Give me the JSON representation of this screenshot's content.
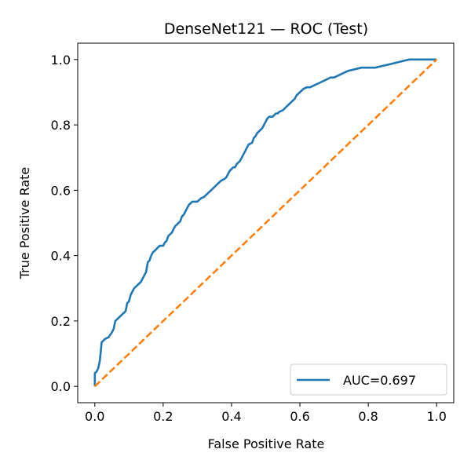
{
  "chart_data": {
    "type": "line",
    "title": "DenseNet121 — ROC (Test)",
    "xlabel": "False Positive Rate",
    "ylabel": "True Positive Rate",
    "xlim": [
      -0.05,
      1.05
    ],
    "ylim": [
      -0.05,
      1.05
    ],
    "x_ticks": [
      "0.0",
      "0.2",
      "0.4",
      "0.6",
      "0.8",
      "1.0"
    ],
    "y_ticks": [
      "0.0",
      "0.2",
      "0.4",
      "0.6",
      "0.8",
      "1.0"
    ],
    "legend_position": "lower-right",
    "grid": false,
    "series": [
      {
        "name": "AUC=0.697",
        "color": "#1f77b4",
        "style": "solid",
        "x": [
          0.0,
          0.0,
          0.005,
          0.01,
          0.012,
          0.015,
          0.02,
          0.025,
          0.03,
          0.04,
          0.05,
          0.055,
          0.06,
          0.065,
          0.07,
          0.075,
          0.08,
          0.09,
          0.095,
          0.1,
          0.105,
          0.11,
          0.115,
          0.12,
          0.125,
          0.13,
          0.135,
          0.14,
          0.145,
          0.15,
          0.155,
          0.16,
          0.165,
          0.17,
          0.175,
          0.18,
          0.185,
          0.19,
          0.2,
          0.205,
          0.21,
          0.215,
          0.22,
          0.225,
          0.23,
          0.235,
          0.24,
          0.245,
          0.25,
          0.255,
          0.26,
          0.265,
          0.27,
          0.275,
          0.28,
          0.285,
          0.29,
          0.3,
          0.31,
          0.32,
          0.325,
          0.33,
          0.34,
          0.35,
          0.36,
          0.37,
          0.38,
          0.385,
          0.39,
          0.395,
          0.4,
          0.405,
          0.41,
          0.415,
          0.42,
          0.425,
          0.43,
          0.44,
          0.445,
          0.45,
          0.46,
          0.465,
          0.47,
          0.475,
          0.48,
          0.485,
          0.49,
          0.495,
          0.5,
          0.505,
          0.51,
          0.515,
          0.52,
          0.525,
          0.53,
          0.535,
          0.54,
          0.55,
          0.555,
          0.56,
          0.565,
          0.57,
          0.575,
          0.58,
          0.585,
          0.59,
          0.6,
          0.605,
          0.61,
          0.62,
          0.63,
          0.64,
          0.65,
          0.66,
          0.67,
          0.68,
          0.69,
          0.7,
          0.72,
          0.74,
          0.76,
          0.78,
          0.8,
          0.82,
          0.84,
          0.86,
          0.88,
          0.9,
          0.92,
          0.94,
          0.96,
          0.98,
          1.0
        ],
        "y": [
          0.0,
          0.04,
          0.045,
          0.055,
          0.065,
          0.08,
          0.135,
          0.14,
          0.145,
          0.15,
          0.165,
          0.175,
          0.2,
          0.205,
          0.21,
          0.215,
          0.22,
          0.23,
          0.255,
          0.26,
          0.28,
          0.29,
          0.3,
          0.305,
          0.31,
          0.315,
          0.32,
          0.33,
          0.34,
          0.35,
          0.38,
          0.385,
          0.4,
          0.41,
          0.415,
          0.42,
          0.425,
          0.43,
          0.43,
          0.44,
          0.445,
          0.46,
          0.465,
          0.47,
          0.48,
          0.49,
          0.495,
          0.5,
          0.505,
          0.52,
          0.525,
          0.535,
          0.545,
          0.555,
          0.56,
          0.565,
          0.565,
          0.565,
          0.575,
          0.58,
          0.585,
          0.59,
          0.6,
          0.61,
          0.62,
          0.63,
          0.635,
          0.64,
          0.65,
          0.66,
          0.665,
          0.67,
          0.67,
          0.68,
          0.685,
          0.69,
          0.7,
          0.72,
          0.73,
          0.74,
          0.745,
          0.76,
          0.765,
          0.775,
          0.78,
          0.785,
          0.79,
          0.8,
          0.81,
          0.82,
          0.825,
          0.825,
          0.825,
          0.83,
          0.835,
          0.835,
          0.84,
          0.845,
          0.85,
          0.855,
          0.86,
          0.865,
          0.87,
          0.875,
          0.88,
          0.89,
          0.9,
          0.905,
          0.91,
          0.915,
          0.915,
          0.92,
          0.925,
          0.93,
          0.935,
          0.94,
          0.945,
          0.945,
          0.955,
          0.965,
          0.97,
          0.975,
          0.975,
          0.975,
          0.98,
          0.985,
          0.99,
          0.995,
          1.0,
          1.0,
          1.0,
          1.0,
          1.0
        ]
      },
      {
        "name": "",
        "color": "#ff7f0e",
        "style": "dashed",
        "x": [
          0.0,
          1.0
        ],
        "y": [
          0.0,
          1.0
        ]
      }
    ]
  }
}
